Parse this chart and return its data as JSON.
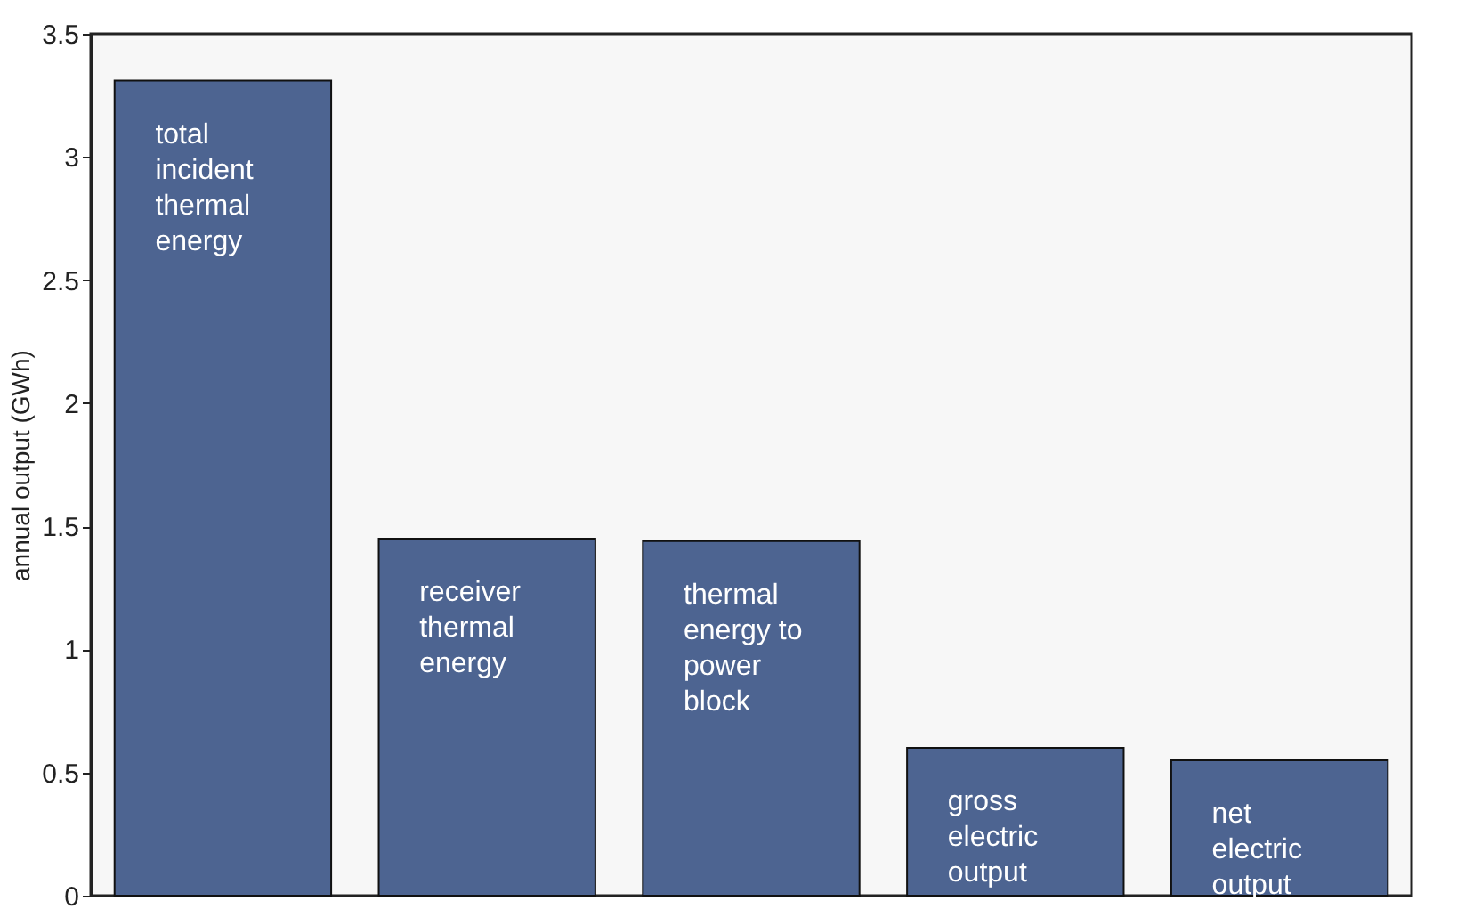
{
  "chart_data": {
    "type": "bar",
    "ylabel": "annual output (GWh)",
    "categories": [
      "total\nincident\nthermal\nenergy",
      "receiver\nthermal\nenergy",
      "thermal\nenergy to\npower\nblock",
      "gross\nelectric\noutput",
      "net\nelectric\noutput"
    ],
    "values": [
      3.31,
      1.45,
      1.44,
      0.6,
      0.55
    ],
    "color": "#4d6491",
    "ylim": [
      0,
      3.5
    ],
    "yticks": [
      0,
      0.5,
      1,
      1.5,
      2,
      2.5,
      3,
      3.5
    ],
    "tick_labels": "y",
    "grid": false
  }
}
